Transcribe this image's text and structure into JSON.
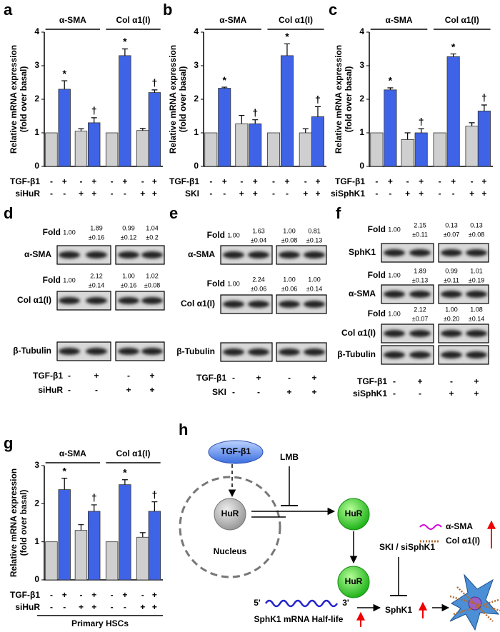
{
  "chart_data": [
    {
      "panel": "a",
      "type": "bar",
      "y_label": [
        "Relative mRNA expression",
        "(fold over basal)"
      ],
      "groups": [
        "α-SMA",
        "Col α1(I)"
      ],
      "values": [
        1,
        2.3,
        1.05,
        1.3,
        1,
        3.3,
        1.07,
        2.2
      ],
      "errors": [
        null,
        0.25,
        0.07,
        0.15,
        null,
        0.2,
        0.06,
        0.08
      ],
      "colors": [
        "#cfcfcf",
        "#3f63e6"
      ],
      "annotations": [
        {
          "index": 1,
          "text": "*"
        },
        {
          "index": 3,
          "text": "†"
        },
        {
          "index": 5,
          "text": "*"
        },
        {
          "index": 7,
          "text": "†"
        }
      ],
      "treatments": [
        {
          "name": "TGF-β1",
          "signs": [
            "-",
            "+",
            "-",
            "+",
            "-",
            "+",
            "-",
            "+"
          ]
        },
        {
          "name": "siHuR",
          "signs": [
            "-",
            "-",
            "+",
            "+",
            "-",
            "-",
            "+",
            "+"
          ]
        }
      ],
      "ylim": [
        0,
        4
      ],
      "yticks": [
        0,
        1,
        2,
        3,
        4
      ]
    },
    {
      "panel": "b",
      "type": "bar",
      "y_label": [
        "Relative mRNA expression",
        "(fold over basal)"
      ],
      "groups": [
        "α-SMA",
        "Col α1(I)"
      ],
      "values": [
        1,
        2.33,
        1.27,
        1.27,
        1,
        3.3,
        1.0,
        1.48
      ],
      "errors": [
        null,
        0.03,
        0.25,
        0.12,
        null,
        0.35,
        0.12,
        0.3
      ],
      "colors": [
        "#cfcfcf",
        "#3f63e6"
      ],
      "annotations": [
        {
          "index": 1,
          "text": "*"
        },
        {
          "index": 3,
          "text": "†"
        },
        {
          "index": 5,
          "text": "*"
        },
        {
          "index": 7,
          "text": "†"
        }
      ],
      "treatments": [
        {
          "name": "TGF-β1",
          "signs": [
            "-",
            "+",
            "-",
            "+",
            "-",
            "+",
            "-",
            "+"
          ]
        },
        {
          "name": "SKI",
          "signs": [
            "-",
            "-",
            "+",
            "+",
            "-",
            "-",
            "+",
            "+"
          ]
        }
      ],
      "ylim": [
        0,
        4
      ],
      "yticks": [
        0,
        1,
        2,
        3,
        4
      ]
    },
    {
      "panel": "c",
      "type": "bar",
      "y_label": [
        "Relative mRNA expression",
        "(fold over basal)"
      ],
      "groups": [
        "α-SMA",
        "Col α1(I)"
      ],
      "values": [
        1,
        2.28,
        0.8,
        1.0,
        1,
        3.27,
        1.2,
        1.65
      ],
      "errors": [
        null,
        0.06,
        0.2,
        0.12,
        null,
        0.08,
        0.1,
        0.18
      ],
      "colors": [
        "#cfcfcf",
        "#3f63e6"
      ],
      "annotations": [
        {
          "index": 1,
          "text": "*"
        },
        {
          "index": 3,
          "text": "†"
        },
        {
          "index": 5,
          "text": "*"
        },
        {
          "index": 7,
          "text": "†"
        }
      ],
      "treatments": [
        {
          "name": "TGF-β1",
          "signs": [
            "-",
            "+",
            "-",
            "+",
            "-",
            "+",
            "-",
            "+"
          ]
        },
        {
          "name": "siSphK1",
          "signs": [
            "-",
            "-",
            "+",
            "+",
            "-",
            "-",
            "+",
            "+"
          ]
        }
      ],
      "ylim": [
        0,
        4
      ],
      "yticks": [
        0,
        1,
        2,
        3,
        4
      ]
    },
    {
      "panel": "g",
      "type": "bar",
      "y_label": [
        "Relative mRNA expression",
        "(fold over basal)"
      ],
      "groups": [
        "α-SMA",
        "Col α1(I)"
      ],
      "values": [
        1,
        2.37,
        1.3,
        1.8,
        1,
        2.5,
        1.12,
        1.8
      ],
      "errors": [
        null,
        0.3,
        0.15,
        0.17,
        null,
        0.13,
        0.12,
        0.25
      ],
      "colors": [
        "#cfcfcf",
        "#3f63e6"
      ],
      "annotations": [
        {
          "index": 1,
          "text": "*"
        },
        {
          "index": 3,
          "text": "†"
        },
        {
          "index": 5,
          "text": "*"
        },
        {
          "index": 7,
          "text": "†"
        }
      ],
      "treatments": [
        {
          "name": "TGF-β1",
          "signs": [
            "-",
            "+",
            "-",
            "+",
            "-",
            "+",
            "-",
            "+"
          ]
        },
        {
          "name": "siHuR",
          "signs": [
            "-",
            "-",
            "+",
            "+",
            "-",
            "-",
            "+",
            "+"
          ]
        }
      ],
      "footnote": "Primary HSCs",
      "ylim": [
        0,
        3
      ],
      "yticks": [
        0,
        1,
        2,
        3
      ]
    }
  ],
  "blots": [
    {
      "panel": "d",
      "rows": [
        {
          "label": "Fold",
          "values": [
            {
              "mean": "1.00"
            },
            {
              "mean": "1.89",
              "sd": "±0.16"
            },
            {
              "mean": "0.99",
              "sd": "±0.12"
            },
            {
              "mean": "1.04",
              "sd": "±0.2"
            }
          ]
        },
        {
          "band": "α-SMA"
        },
        {
          "label": "Fold",
          "values": [
            {
              "mean": "1.00"
            },
            {
              "mean": "2.12",
              "sd": "±0.14"
            },
            {
              "mean": "1.00",
              "sd": "±0.16"
            },
            {
              "mean": "1.02",
              "sd": "±0.08"
            }
          ]
        },
        {
          "band": "Col α1(I)"
        },
        {
          "band": "β-Tubulin"
        }
      ],
      "treatments": [
        {
          "name": "TGF-β1",
          "signs": [
            "-",
            "+",
            "-",
            "+"
          ]
        },
        {
          "name": "siHuR",
          "signs": [
            "-",
            "-",
            "+",
            "+"
          ]
        }
      ]
    },
    {
      "panel": "e",
      "rows": [
        {
          "label": "Fold",
          "values": [
            {
              "mean": "1.00"
            },
            {
              "mean": "1.63",
              "sd": "±0.04"
            },
            {
              "mean": "1.00",
              "sd": "±0.08"
            },
            {
              "mean": "0.81",
              "sd": "±0.13"
            }
          ]
        },
        {
          "band": "α-SMA"
        },
        {
          "label": "Fold",
          "values": [
            {
              "mean": "1.00"
            },
            {
              "mean": "2.24",
              "sd": "±0.06"
            },
            {
              "mean": "1.00",
              "sd": "±0.06"
            },
            {
              "mean": "1.00",
              "sd": "±0.14"
            }
          ]
        },
        {
          "band": "Col α1(I)"
        },
        {
          "band": "β-Tubulin"
        }
      ],
      "treatments": [
        {
          "name": "TGF-β1",
          "signs": [
            "-",
            "+",
            "-",
            "+"
          ]
        },
        {
          "name": "SKI",
          "signs": [
            "-",
            "-",
            "+",
            "+"
          ]
        }
      ]
    },
    {
      "panel": "f",
      "rows": [
        {
          "label": "Fold",
          "values": [
            {
              "mean": "1.00"
            },
            {
              "mean": "2.15",
              "sd": "±0.11"
            },
            {
              "mean": "0.13",
              "sd": "±0.07"
            },
            {
              "mean": "0.13",
              "sd": "±0.08"
            }
          ]
        },
        {
          "band": "SphK1"
        },
        {
          "label": "Fold",
          "values": [
            {
              "mean": "1.00"
            },
            {
              "mean": "1.89",
              "sd": "±0.13"
            },
            {
              "mean": "0.99",
              "sd": "±0.11"
            },
            {
              "mean": "1.01",
              "sd": "±0.19"
            }
          ]
        },
        {
          "band": "α-SMA"
        },
        {
          "label": "Fold",
          "values": [
            {
              "mean": "1.00"
            },
            {
              "mean": "2.12",
              "sd": "±0.07"
            },
            {
              "mean": "1.00",
              "sd": "±0.20"
            },
            {
              "mean": "1.08",
              "sd": "±0.14"
            }
          ]
        },
        {
          "band": "Col α1(I)"
        },
        {
          "band": "β-Tubulin"
        }
      ],
      "treatments": [
        {
          "name": "TGF-β1",
          "signs": [
            "-",
            "+",
            "-",
            "+"
          ]
        },
        {
          "name": "siSphK1",
          "signs": [
            "-",
            "-",
            "+",
            "+"
          ]
        }
      ]
    }
  ],
  "diagram": {
    "panel": "h",
    "ligand": "TGF-β1",
    "inhibitor": "LMB",
    "protein": "HuR",
    "compartment": "Nucleus",
    "five_prime": "5'",
    "three_prime": "3'",
    "mrna_label": "SphK1 mRNA Half-life",
    "sphk_inhibitor": "SKI / siSphK1",
    "kinase": "SphK1",
    "markers": [
      "α-SMA",
      "Col α1(I)"
    ]
  }
}
